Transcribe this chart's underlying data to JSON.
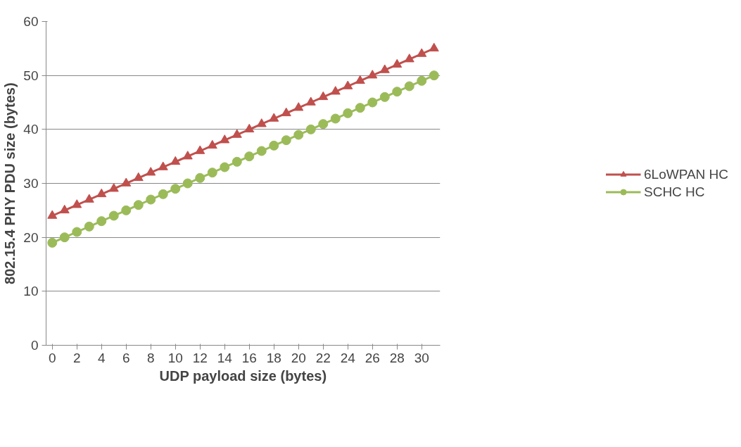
{
  "chart_data": {
    "type": "line",
    "xlabel": "UDP payload size (bytes)",
    "ylabel": "802.15.4 PHY PDU size (bytes)",
    "x": [
      0,
      1,
      2,
      3,
      4,
      5,
      6,
      7,
      8,
      9,
      10,
      11,
      12,
      13,
      14,
      15,
      16,
      17,
      18,
      19,
      20,
      21,
      22,
      23,
      24,
      25,
      26,
      27,
      28,
      29,
      30,
      31
    ],
    "xlim": [
      -0.5,
      31.5
    ],
    "xticks": [
      0,
      2,
      4,
      6,
      8,
      10,
      12,
      14,
      16,
      18,
      20,
      22,
      24,
      26,
      28,
      30
    ],
    "series": [
      {
        "name": "6LoWPAN HC",
        "color": "#c0504d",
        "marker": "triangle",
        "values": [
          24,
          25,
          26,
          27,
          28,
          29,
          30,
          31,
          32,
          33,
          34,
          35,
          36,
          37,
          38,
          39,
          40,
          41,
          42,
          43,
          44,
          45,
          46,
          47,
          48,
          49,
          50,
          51,
          52,
          53,
          54,
          55
        ]
      },
      {
        "name": "SCHC HC",
        "color": "#9bbb59",
        "marker": "circle",
        "values": [
          19,
          20,
          21,
          22,
          23,
          24,
          25,
          26,
          27,
          28,
          29,
          30,
          31,
          32,
          33,
          34,
          35,
          36,
          37,
          38,
          39,
          40,
          41,
          42,
          43,
          44,
          45,
          46,
          47,
          48,
          49,
          50
        ]
      }
    ],
    "ylim": [
      0,
      60
    ],
    "yticks": [
      0,
      10,
      20,
      30,
      40,
      50,
      60
    ],
    "grid": "y",
    "legend": "right",
    "line_style": "solid"
  }
}
